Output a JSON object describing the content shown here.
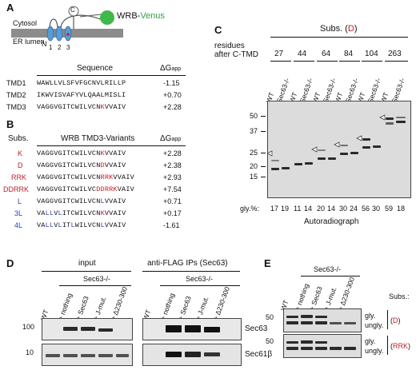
{
  "panelA": {
    "label": "A",
    "construct": "WRB-",
    "venus": "Venus",
    "cterm": "C",
    "nterm": "N",
    "tmd_numbers": [
      "1",
      "2",
      "3"
    ],
    "cytosol": "Cytosol",
    "er_lumen": "ER lumen",
    "col_sequence": "Sequence",
    "col_dg": "ΔG",
    "col_dg_sub": "app",
    "rows": [
      {
        "name": "TMD1",
        "seq": "WAWLLVLSFVFGCNVLRILLP",
        "dg": "-1.15"
      },
      {
        "name": "TMD2",
        "seq": "IKWVISVAFYVLQAALMISLI",
        "dg": "+0.70"
      },
      {
        "name": "TMD3",
        "seq_pre": "VAGGVGITCWILVCN",
        "seq_mut": "K",
        "seq_post": "VVAIV",
        "dg": "+2.28"
      }
    ]
  },
  "panelB": {
    "label": "B",
    "col_subs": "Subs.",
    "col_variants": "WRB TMD3-Variants",
    "col_dg": "ΔG",
    "col_dg_sub": "app",
    "rows": [
      {
        "subs": "K",
        "seq": "VAGGVGITCWILVCNKVVAIV",
        "dg": "+2.28"
      },
      {
        "subs": "D",
        "seq": "VAGGVGITCWILVCNDVVAIV",
        "dg": "+2.38"
      },
      {
        "subs": "RRK",
        "seq": "VAGGVGITCWILVCNRRKVVAIV",
        "dg": "+2.93"
      },
      {
        "subs": "DDRRK",
        "seq": "VAGGVGITCWILVCDDRRKVAIV",
        "dg": "+7.54"
      },
      {
        "subs": "L",
        "seq": "VAGGVGITCWILVCNLVVAIV",
        "dg": "+0.71"
      },
      {
        "subs": "3L",
        "seq": "VALLVLITCWILVCNKVVAIV",
        "dg": "+0.17"
      },
      {
        "subs": "4L",
        "seq": "VALLVLITLWILVCNLVVAIV",
        "dg": "-1.61"
      }
    ]
  },
  "panelC": {
    "label": "C",
    "subs_title": "Subs. (",
    "subs_mut": "D",
    "subs_close": ")",
    "residues_line1": "residues",
    "residues_line2": "after C-TMD",
    "groups": [
      "27",
      "44",
      "64",
      "84",
      "104",
      "263"
    ],
    "lanes": [
      "WT",
      "Sec63-/-",
      "WT",
      "Sec63-/-",
      "WT",
      "Sec63-/-",
      "WT",
      "Sec63-/-",
      "WT",
      "Sec63-/-",
      "WT",
      "Sec63-/-"
    ],
    "markers": [
      "50",
      "37",
      "25",
      "20",
      "15"
    ],
    "gly_label": "gly.%:",
    "gly_values": [
      "17",
      "19",
      "11",
      "14",
      "20",
      "14",
      "30",
      "24",
      "56",
      "30",
      "59",
      "18"
    ],
    "caption": "Autoradiograph"
  },
  "panelD": {
    "label": "D",
    "input_title": "input",
    "ip_title": "anti-FLAG IPs (Sec63)",
    "sec63ko": "Sec63-/-",
    "lanes": [
      "WT",
      "+ nothing",
      "+ Sec63",
      "+ J-mut.",
      "+ Δ230-300"
    ],
    "markers": [
      "100",
      "10"
    ],
    "blot_labels": [
      "Sec63",
      "Sec61β"
    ]
  },
  "panelE": {
    "label": "E",
    "sec63ko": "Sec63-/-",
    "lanes": [
      "WT",
      "+ nothing",
      "+ Sec63",
      "+ J-mut.",
      "+ Δ230-300"
    ],
    "marker": "50",
    "gly": "gly.",
    "ungly": "ungly.",
    "subs_title": "Subs.:",
    "subs_d": "D",
    "subs_rrk": "RRK"
  }
}
